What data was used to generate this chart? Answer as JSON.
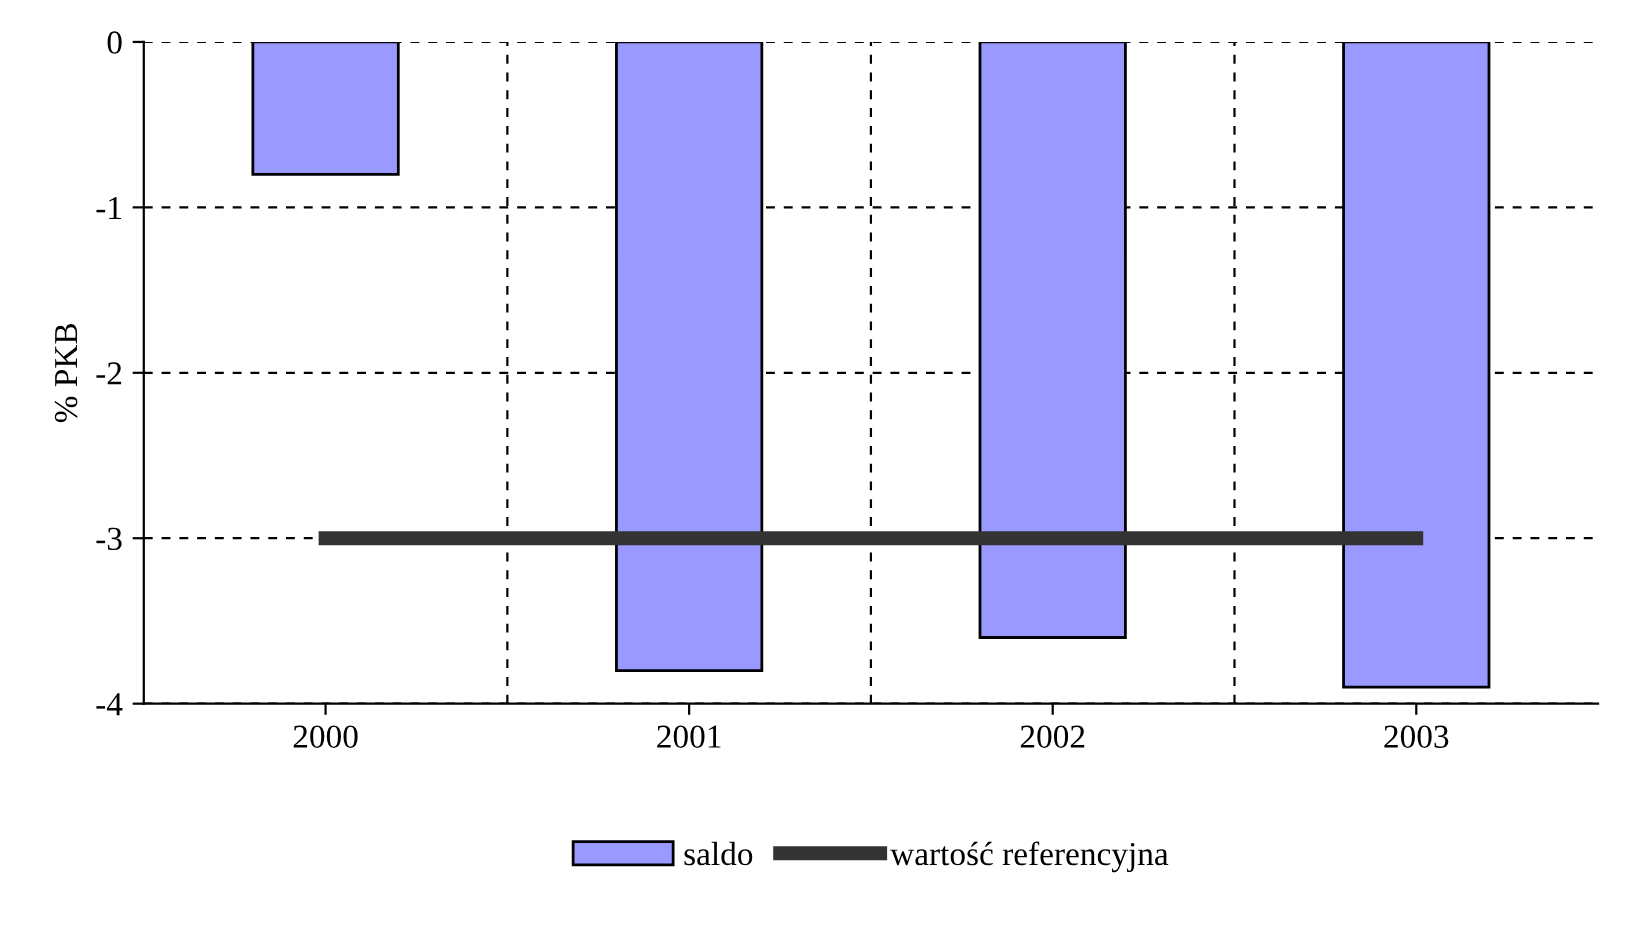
{
  "chart_data": {
    "type": "bar",
    "ylabel": "% PKB",
    "categories": [
      "2000",
      "2001",
      "2002",
      "2003"
    ],
    "series": [
      {
        "name": "saldo",
        "color": "#9999ff",
        "values": [
          -0.8,
          -3.8,
          -3.6,
          -3.9
        ]
      },
      {
        "name": "wartość referencyjna",
        "type": "line",
        "color": "#333333",
        "values": [
          -3,
          -3,
          -3,
          -3
        ]
      }
    ],
    "ylim": [
      -4,
      0
    ],
    "yticks": [
      -4,
      -3,
      -2,
      -1,
      0
    ],
    "grid": true,
    "legend": "bottom",
    "marker": "none",
    "line_style": "solid"
  }
}
